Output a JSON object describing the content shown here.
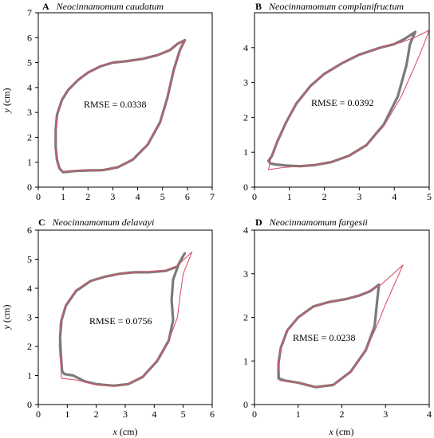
{
  "figure": {
    "colors": {
      "observed": "#7a7a7a",
      "predicted": "#d9546b",
      "axis": "#000000"
    },
    "x_axis_label_italic": "x",
    "x_axis_label_unit": " (cm)",
    "y_axis_label_italic": "y",
    "y_axis_label_unit": " (cm)"
  },
  "chart_data": [
    {
      "type": "line",
      "letter": "A",
      "species": "Neocinnamomum caudatum",
      "rmse_text": "RMSE = 0.0338",
      "xlabel": "x (cm)",
      "ylabel": "y (cm)",
      "xlim": [
        0,
        7
      ],
      "ylim": [
        0,
        7
      ],
      "xticks": [
        0,
        1,
        2,
        3,
        4,
        5,
        6,
        7
      ],
      "yticks": [
        0,
        1,
        2,
        3,
        4,
        5,
        6,
        7
      ],
      "series": [
        {
          "role": "observed",
          "points": [
            [
              5.9,
              5.9
            ],
            [
              5.6,
              5.75
            ],
            [
              5.3,
              5.5
            ],
            [
              4.8,
              5.3
            ],
            [
              4.2,
              5.15
            ],
            [
              3.5,
              5.05
            ],
            [
              3.0,
              5.0
            ],
            [
              2.5,
              4.85
            ],
            [
              2.0,
              4.6
            ],
            [
              1.6,
              4.3
            ],
            [
              1.2,
              3.9
            ],
            [
              0.95,
              3.5
            ],
            [
              0.75,
              2.9
            ],
            [
              0.7,
              2.3
            ],
            [
              0.7,
              1.6
            ],
            [
              0.75,
              1.1
            ],
            [
              0.85,
              0.75
            ],
            [
              1.0,
              0.6
            ],
            [
              1.2,
              0.62
            ],
            [
              1.5,
              0.65
            ],
            [
              2.0,
              0.67
            ],
            [
              2.6,
              0.68
            ],
            [
              3.2,
              0.8
            ],
            [
              3.8,
              1.1
            ],
            [
              4.4,
              1.7
            ],
            [
              4.9,
              2.6
            ],
            [
              5.2,
              3.6
            ],
            [
              5.45,
              4.7
            ],
            [
              5.7,
              5.5
            ],
            [
              5.9,
              5.9
            ]
          ]
        },
        {
          "role": "predicted",
          "points": [
            [
              5.9,
              5.9
            ],
            [
              5.6,
              5.75
            ],
            [
              5.3,
              5.5
            ],
            [
              4.8,
              5.3
            ],
            [
              4.2,
              5.15
            ],
            [
              3.5,
              5.05
            ],
            [
              3.0,
              5.0
            ],
            [
              2.5,
              4.85
            ],
            [
              2.0,
              4.6
            ],
            [
              1.6,
              4.3
            ],
            [
              1.2,
              3.9
            ],
            [
              0.95,
              3.5
            ],
            [
              0.75,
              2.9
            ],
            [
              0.7,
              2.3
            ],
            [
              0.7,
              1.6
            ],
            [
              0.75,
              1.1
            ],
            [
              0.85,
              0.75
            ],
            [
              1.0,
              0.62
            ],
            [
              1.2,
              0.65
            ],
            [
              1.5,
              0.67
            ],
            [
              2.0,
              0.68
            ],
            [
              2.6,
              0.68
            ],
            [
              3.2,
              0.8
            ],
            [
              3.8,
              1.1
            ],
            [
              4.4,
              1.7
            ],
            [
              4.9,
              2.6
            ],
            [
              5.2,
              3.6
            ],
            [
              5.45,
              4.7
            ],
            [
              5.7,
              5.5
            ],
            [
              5.9,
              5.9
            ]
          ]
        }
      ]
    },
    {
      "type": "line",
      "letter": "B",
      "species": "Neocinnamomum complanifructum",
      "rmse_text": "RMSE = 0.0392",
      "xlabel": "x (cm)",
      "ylabel": "y (cm)",
      "xlim": [
        0,
        5
      ],
      "ylim": [
        0,
        5
      ],
      "xticks": [
        0,
        1,
        2,
        3,
        4,
        5
      ],
      "yticks": [
        0,
        1,
        2,
        3,
        4
      ],
      "series": [
        {
          "role": "observed",
          "points": [
            [
              4.6,
              4.45
            ],
            [
              4.3,
              4.25
            ],
            [
              4.0,
              4.1
            ],
            [
              3.6,
              4.0
            ],
            [
              3.0,
              3.8
            ],
            [
              2.5,
              3.55
            ],
            [
              2.0,
              3.25
            ],
            [
              1.6,
              2.9
            ],
            [
              1.2,
              2.4
            ],
            [
              0.9,
              1.85
            ],
            [
              0.65,
              1.3
            ],
            [
              0.5,
              0.9
            ],
            [
              0.4,
              0.75
            ],
            [
              0.45,
              0.68
            ],
            [
              0.6,
              0.65
            ],
            [
              0.9,
              0.62
            ],
            [
              1.3,
              0.6
            ],
            [
              1.7,
              0.63
            ],
            [
              2.2,
              0.72
            ],
            [
              2.7,
              0.9
            ],
            [
              3.2,
              1.2
            ],
            [
              3.7,
              1.8
            ],
            [
              4.1,
              2.6
            ],
            [
              4.35,
              3.5
            ],
            [
              4.45,
              4.1
            ],
            [
              4.6,
              4.45
            ]
          ]
        },
        {
          "role": "predicted",
          "points": [
            [
              5.0,
              4.5
            ],
            [
              4.6,
              4.3
            ],
            [
              4.2,
              4.15
            ],
            [
              3.6,
              4.0
            ],
            [
              3.0,
              3.8
            ],
            [
              2.5,
              3.55
            ],
            [
              2.0,
              3.25
            ],
            [
              1.6,
              2.9
            ],
            [
              1.2,
              2.4
            ],
            [
              0.9,
              1.85
            ],
            [
              0.65,
              1.3
            ],
            [
              0.5,
              0.95
            ],
            [
              0.45,
              0.75
            ],
            [
              0.4,
              0.5
            ],
            [
              0.8,
              0.56
            ],
            [
              1.3,
              0.6
            ],
            [
              1.7,
              0.63
            ],
            [
              2.2,
              0.72
            ],
            [
              2.7,
              0.9
            ],
            [
              3.2,
              1.2
            ],
            [
              3.7,
              1.75
            ],
            [
              4.2,
              2.6
            ],
            [
              4.6,
              3.5
            ],
            [
              4.85,
              4.1
            ],
            [
              5.0,
              4.5
            ]
          ]
        }
      ]
    },
    {
      "type": "line",
      "letter": "C",
      "species": "Neocinnamomum delavayi",
      "rmse_text": "RMSE = 0.0756",
      "xlabel": "x (cm)",
      "ylabel": "y (cm)",
      "xlim": [
        0,
        6
      ],
      "ylim": [
        0,
        6
      ],
      "xticks": [
        0,
        1,
        2,
        3,
        4,
        5,
        6
      ],
      "yticks": [
        0,
        1,
        2,
        3,
        4,
        5,
        6
      ],
      "series": [
        {
          "role": "observed",
          "points": [
            [
              5.05,
              5.2
            ],
            [
              4.8,
              4.75
            ],
            [
              4.4,
              4.6
            ],
            [
              3.8,
              4.55
            ],
            [
              3.3,
              4.55
            ],
            [
              2.8,
              4.5
            ],
            [
              2.3,
              4.4
            ],
            [
              1.8,
              4.25
            ],
            [
              1.3,
              3.9
            ],
            [
              0.95,
              3.4
            ],
            [
              0.8,
              2.9
            ],
            [
              0.75,
              2.3
            ],
            [
              0.78,
              1.7
            ],
            [
              0.82,
              1.15
            ],
            [
              0.9,
              1.05
            ],
            [
              1.2,
              1.0
            ],
            [
              1.6,
              0.8
            ],
            [
              2.0,
              0.7
            ],
            [
              2.6,
              0.65
            ],
            [
              3.1,
              0.7
            ],
            [
              3.6,
              0.95
            ],
            [
              4.1,
              1.5
            ],
            [
              4.5,
              2.2
            ],
            [
              4.65,
              2.9
            ],
            [
              4.6,
              3.6
            ],
            [
              4.65,
              4.3
            ],
            [
              4.85,
              4.85
            ],
            [
              5.05,
              5.2
            ]
          ]
        },
        {
          "role": "predicted",
          "points": [
            [
              5.3,
              5.25
            ],
            [
              4.8,
              4.78
            ],
            [
              4.4,
              4.62
            ],
            [
              3.8,
              4.57
            ],
            [
              3.3,
              4.55
            ],
            [
              2.8,
              4.5
            ],
            [
              2.3,
              4.4
            ],
            [
              1.8,
              4.25
            ],
            [
              1.3,
              3.95
            ],
            [
              0.95,
              3.45
            ],
            [
              0.75,
              2.8
            ],
            [
              0.72,
              2.0
            ],
            [
              0.78,
              1.3
            ],
            [
              0.8,
              0.9
            ],
            [
              1.3,
              0.85
            ],
            [
              2.0,
              0.68
            ],
            [
              2.6,
              0.63
            ],
            [
              3.1,
              0.7
            ],
            [
              3.6,
              0.95
            ],
            [
              4.1,
              1.5
            ],
            [
              4.5,
              2.2
            ],
            [
              4.8,
              3.0
            ],
            [
              4.9,
              3.8
            ],
            [
              5.0,
              4.5
            ],
            [
              5.3,
              5.25
            ]
          ]
        }
      ]
    },
    {
      "type": "line",
      "letter": "D",
      "species": "Neocinnamomum fargesii",
      "rmse_text": "RMSE = 0.0238",
      "xlabel": "x (cm)",
      "ylabel": "y (cm)",
      "xlim": [
        0,
        4
      ],
      "ylim": [
        0,
        4
      ],
      "xticks": [
        0,
        1,
        2,
        3,
        4
      ],
      "yticks": [
        0,
        1,
        2,
        3,
        4
      ],
      "series": [
        {
          "role": "observed",
          "points": [
            [
              2.85,
              2.75
            ],
            [
              2.65,
              2.6
            ],
            [
              2.4,
              2.5
            ],
            [
              2.1,
              2.42
            ],
            [
              1.7,
              2.35
            ],
            [
              1.35,
              2.25
            ],
            [
              1.0,
              2.0
            ],
            [
              0.75,
              1.7
            ],
            [
              0.6,
              1.3
            ],
            [
              0.55,
              0.95
            ],
            [
              0.55,
              0.6
            ],
            [
              0.7,
              0.55
            ],
            [
              1.0,
              0.5
            ],
            [
              1.4,
              0.4
            ],
            [
              1.8,
              0.45
            ],
            [
              2.2,
              0.75
            ],
            [
              2.55,
              1.25
            ],
            [
              2.75,
              1.8
            ],
            [
              2.8,
              2.3
            ],
            [
              2.85,
              2.75
            ]
          ]
        },
        {
          "role": "predicted",
          "points": [
            [
              3.4,
              3.2
            ],
            [
              2.9,
              2.75
            ],
            [
              2.4,
              2.5
            ],
            [
              2.1,
              2.42
            ],
            [
              1.7,
              2.35
            ],
            [
              1.35,
              2.25
            ],
            [
              1.0,
              2.0
            ],
            [
              0.75,
              1.7
            ],
            [
              0.6,
              1.3
            ],
            [
              0.55,
              0.95
            ],
            [
              0.58,
              0.55
            ],
            [
              1.0,
              0.5
            ],
            [
              1.4,
              0.4
            ],
            [
              1.8,
              0.45
            ],
            [
              2.2,
              0.75
            ],
            [
              2.55,
              1.25
            ],
            [
              2.8,
              1.8
            ],
            [
              3.0,
              2.3
            ],
            [
              3.2,
              2.75
            ],
            [
              3.4,
              3.2
            ]
          ]
        }
      ]
    }
  ]
}
